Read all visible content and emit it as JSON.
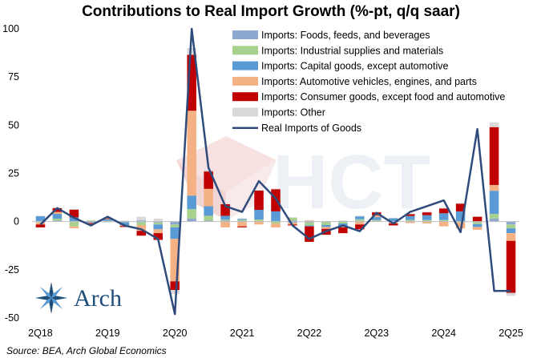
{
  "chart_data": {
    "type": "bar",
    "title": "Contributions to Real Import Growth (%-pt, q/q saar)",
    "source": "Source: BEA, Arch Global Economics",
    "logo_text": "Arch",
    "watermark_text": "HCT",
    "ylim": [
      -50,
      100
    ],
    "yticks": [
      "100",
      "75",
      "50",
      "25",
      "0",
      "-25",
      "-50"
    ],
    "ytick_values": [
      100,
      75,
      50,
      25,
      0,
      -25,
      -50
    ],
    "x_tick_labels": [
      {
        "label": "2Q18",
        "index": 0
      },
      {
        "label": "2Q19",
        "index": 4
      },
      {
        "label": "2Q20",
        "index": 8
      },
      {
        "label": "2Q21",
        "index": 12
      },
      {
        "label": "2Q22",
        "index": 16
      },
      {
        "label": "2Q23",
        "index": 20
      },
      {
        "label": "2Q24",
        "index": 24
      },
      {
        "label": "2Q25",
        "index": 28
      }
    ],
    "categories": [
      "2Q18",
      "3Q18",
      "4Q18",
      "1Q19",
      "2Q19",
      "3Q19",
      "4Q19",
      "1Q20",
      "2Q20",
      "3Q20",
      "4Q20",
      "1Q21",
      "2Q21",
      "3Q21",
      "4Q21",
      "1Q22",
      "2Q22",
      "3Q22",
      "4Q22",
      "1Q23",
      "2Q23",
      "3Q23",
      "4Q23",
      "1Q24",
      "2Q24",
      "3Q24",
      "4Q24",
      "1Q25",
      "2Q25"
    ],
    "stacked": true,
    "grid": false,
    "legend_position": "top-right",
    "series": [
      {
        "name": "Imports: Foods, feeds, and beverages",
        "color": "#8ea9d1",
        "values": [
          0.3,
          0.5,
          0.2,
          0.3,
          -0.3,
          0.2,
          -0.3,
          -0.5,
          -1.5,
          1.5,
          0.5,
          0.5,
          0.4,
          0.3,
          0.3,
          0.5,
          -0.5,
          -0.3,
          0.3,
          0.4,
          0.3,
          0.2,
          0.4,
          0.3,
          0.3,
          0.3,
          -0.3,
          1.5,
          -1.5
        ]
      },
      {
        "name": "Imports: Industrial supplies and materials",
        "color": "#a9d18e",
        "values": [
          -0.5,
          1.0,
          -2.5,
          0.3,
          0.4,
          -0.3,
          -1.5,
          -1.0,
          -1.5,
          5.0,
          2.5,
          0.5,
          0.5,
          0.8,
          -1.0,
          1.5,
          -1.5,
          -1.5,
          -1.0,
          0.8,
          0.5,
          -0.5,
          0.5,
          0.5,
          0.5,
          -0.5,
          -1.0,
          2.5,
          -2.0
        ]
      },
      {
        "name": "Imports: Capital goods, except automotive",
        "color": "#5b9bd5",
        "values": [
          2.5,
          2.5,
          2.0,
          -0.5,
          0.7,
          -1.5,
          0.5,
          -2.5,
          -6.0,
          7.0,
          5.0,
          2.0,
          0.5,
          5.0,
          5.0,
          -0.5,
          -0.5,
          -1.0,
          -1.5,
          1.5,
          1.5,
          1.5,
          2.0,
          2.5,
          3.5,
          5.0,
          -1.5,
          12.0,
          -2.5
        ]
      },
      {
        "name": "Imports: Automotive vehicles, engines, and parts",
        "color": "#f4b183",
        "values": [
          -1.0,
          1.0,
          -1.0,
          -0.3,
          0.3,
          -0.5,
          -3.0,
          -2.0,
          -22.0,
          44.0,
          9.0,
          -3.0,
          -2.5,
          -1.5,
          -2.0,
          -1.0,
          0.5,
          -1.0,
          -0.5,
          -1.5,
          1.0,
          -0.5,
          -0.8,
          -1.0,
          -2.5,
          -3.0,
          -1.5,
          3.0,
          -4.0
        ]
      },
      {
        "name": "Imports: Consumer goods, except food and automotive",
        "color": "#c00000",
        "values": [
          -1.5,
          2.0,
          4.0,
          -0.5,
          0.3,
          -0.5,
          -2.5,
          -3.5,
          -4.5,
          29.0,
          9.0,
          6.0,
          -0.5,
          10.0,
          11.5,
          -0.5,
          -8.0,
          -3.0,
          -3.0,
          -2.5,
          1.5,
          -1.0,
          1.0,
          1.5,
          2.5,
          4.0,
          2.5,
          30.0,
          -27.0
        ]
      },
      {
        "name": "Imports: Other",
        "color": "#d9d9d9",
        "values": [
          0.2,
          0.3,
          0.3,
          0.2,
          0.3,
          0.3,
          2.0,
          1.5,
          -2.0,
          3.5,
          0.8,
          0.3,
          0.3,
          0.3,
          0.3,
          0.3,
          0.3,
          -0.3,
          0.3,
          0.3,
          0.3,
          0.3,
          0.3,
          0.3,
          0.3,
          0.3,
          0.3,
          2.5,
          -1.5
        ]
      }
    ],
    "line_series": {
      "name": "Real Imports of Goods",
      "color": "#2f4b7c",
      "values": [
        -1.5,
        7.0,
        2.0,
        -2.0,
        2.5,
        -2.0,
        -4.0,
        -9.0,
        -48.0,
        100.0,
        28.0,
        8.0,
        5.0,
        21.0,
        12.0,
        -2.0,
        -9.0,
        -5.0,
        -2.0,
        -5.0,
        4.5,
        -1.0,
        5.0,
        8.0,
        11.0,
        -5.5,
        48.0,
        -36.0,
        -36.0
      ]
    }
  }
}
